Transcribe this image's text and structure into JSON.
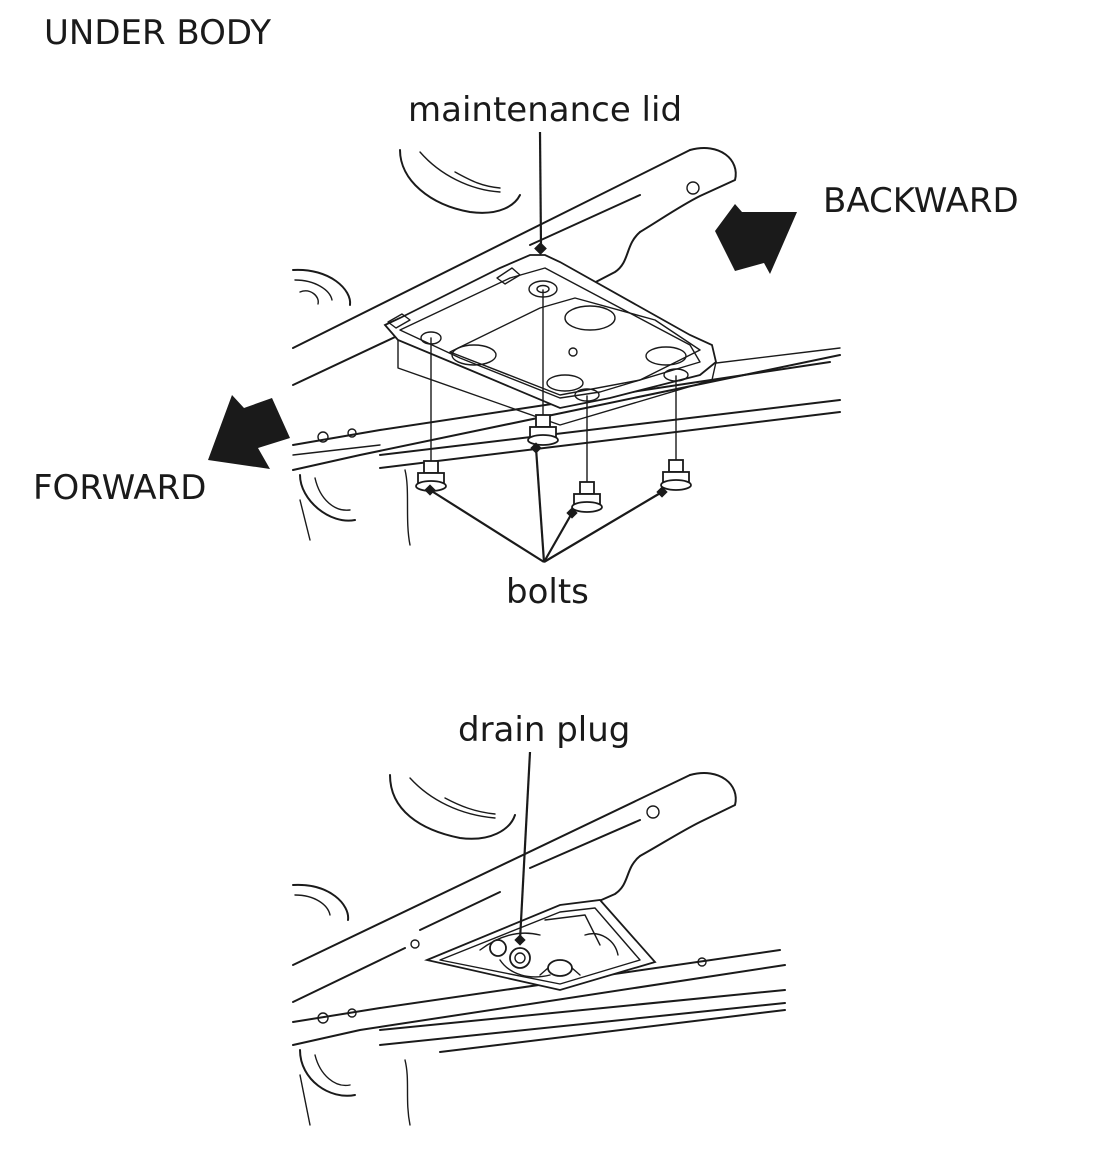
{
  "section_title": "UNDER BODY",
  "top_diagram": {
    "labels": {
      "lid": "maintenance lid",
      "backward": "BACKWARD",
      "forward": "FORWARD",
      "bolts": "bolts"
    }
  },
  "bottom_diagram": {
    "labels": {
      "drain_plug": "drain plug"
    }
  },
  "colors": {
    "ink": "#1a1a1a",
    "background": "#ffffff"
  }
}
